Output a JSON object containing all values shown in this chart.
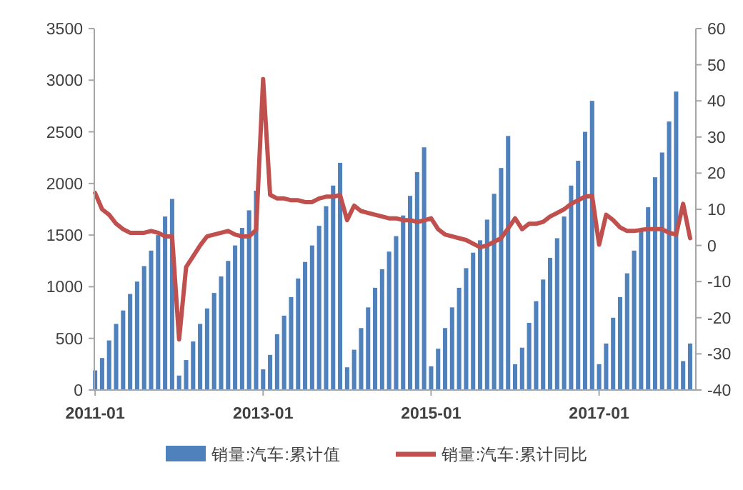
{
  "chart_data": {
    "type": "bar",
    "x": [
      "2011-01",
      "2011-02",
      "2011-03",
      "2011-04",
      "2011-05",
      "2011-06",
      "2011-07",
      "2011-08",
      "2011-09",
      "2011-10",
      "2011-11",
      "2011-12",
      "2012-01",
      "2012-02",
      "2012-03",
      "2012-04",
      "2012-05",
      "2012-06",
      "2012-07",
      "2012-08",
      "2012-09",
      "2012-10",
      "2012-11",
      "2012-12",
      "2013-01",
      "2013-02",
      "2013-03",
      "2013-04",
      "2013-05",
      "2013-06",
      "2013-07",
      "2013-08",
      "2013-09",
      "2013-10",
      "2013-11",
      "2013-12",
      "2014-01",
      "2014-02",
      "2014-03",
      "2014-04",
      "2014-05",
      "2014-06",
      "2014-07",
      "2014-08",
      "2014-09",
      "2014-10",
      "2014-11",
      "2014-12",
      "2015-01",
      "2015-02",
      "2015-03",
      "2015-04",
      "2015-05",
      "2015-06",
      "2015-07",
      "2015-08",
      "2015-09",
      "2015-10",
      "2015-11",
      "2015-12",
      "2016-01",
      "2016-02",
      "2016-03",
      "2016-04",
      "2016-05",
      "2016-06",
      "2016-07",
      "2016-08",
      "2016-09",
      "2016-10",
      "2016-11",
      "2016-12",
      "2017-01",
      "2017-02",
      "2017-03",
      "2017-04",
      "2017-05",
      "2017-06",
      "2017-07",
      "2017-08",
      "2017-09",
      "2017-10",
      "2017-11",
      "2017-12",
      "2018-01",
      "2018-02"
    ],
    "series": [
      {
        "name": "销量:汽车:累计值",
        "color": "#4f81bd",
        "values": [
          190,
          310,
          480,
          640,
          770,
          930,
          1050,
          1200,
          1350,
          1500,
          1680,
          1850,
          140,
          290,
          470,
          640,
          790,
          940,
          1100,
          1250,
          1400,
          1570,
          1740,
          1930,
          200,
          340,
          540,
          720,
          900,
          1080,
          1240,
          1400,
          1590,
          1780,
          1980,
          2200,
          220,
          390,
          600,
          800,
          990,
          1170,
          1340,
          1490,
          1690,
          1880,
          2110,
          2350,
          230,
          400,
          600,
          800,
          990,
          1180,
          1330,
          1450,
          1650,
          1900,
          2150,
          2460,
          250,
          410,
          650,
          860,
          1070,
          1280,
          1470,
          1680,
          1980,
          2220,
          2500,
          2800,
          250,
          450,
          700,
          900,
          1130,
          1350,
          1550,
          1770,
          2060,
          2300,
          2600,
          2890,
          280,
          450
        ]
      },
      {
        "name": "销量:汽车:累计同比",
        "type": "line",
        "axis": "y2",
        "color": "#c0504d",
        "values": [
          14.5,
          10,
          8.5,
          6,
          4.5,
          3.5,
          3.5,
          3.5,
          4,
          3.5,
          2.5,
          2.5,
          -26,
          -6,
          -3,
          0,
          2.5,
          3,
          3.5,
          4,
          3,
          2.5,
          2.5,
          4.3,
          46,
          14,
          13,
          13,
          12.5,
          12.5,
          12,
          12,
          13,
          13.5,
          13.5,
          13.9,
          7,
          11,
          9.5,
          9,
          8.5,
          8,
          7.5,
          7.5,
          7,
          7,
          6.5,
          6.9,
          7.5,
          4.5,
          3,
          2.5,
          2,
          1.5,
          0.5,
          -0.5,
          0,
          1,
          2,
          4.7,
          7.5,
          4.5,
          6,
          6,
          6.5,
          8,
          9,
          10,
          11.5,
          12.5,
          13.5,
          13.7,
          0.2,
          8.5,
          7,
          5,
          4,
          4,
          4.3,
          4.5,
          4.5,
          4.5,
          3.5,
          3,
          11.5,
          2
        ]
      }
    ],
    "xlim": [
      "2010-12-28",
      "2018-02-26"
    ],
    "xticks": [
      "2011-01",
      "2013-01",
      "2015-01",
      "2017-01"
    ],
    "ylim": [
      0,
      3500
    ],
    "yticks": [
      0,
      500,
      1000,
      1500,
      2000,
      2500,
      3000,
      3500
    ],
    "y2lim": [
      -40,
      60
    ],
    "y2ticks": [
      -40,
      -30,
      -20,
      -10,
      0,
      10,
      20,
      30,
      40,
      50,
      60
    ],
    "legend": "bottom"
  }
}
